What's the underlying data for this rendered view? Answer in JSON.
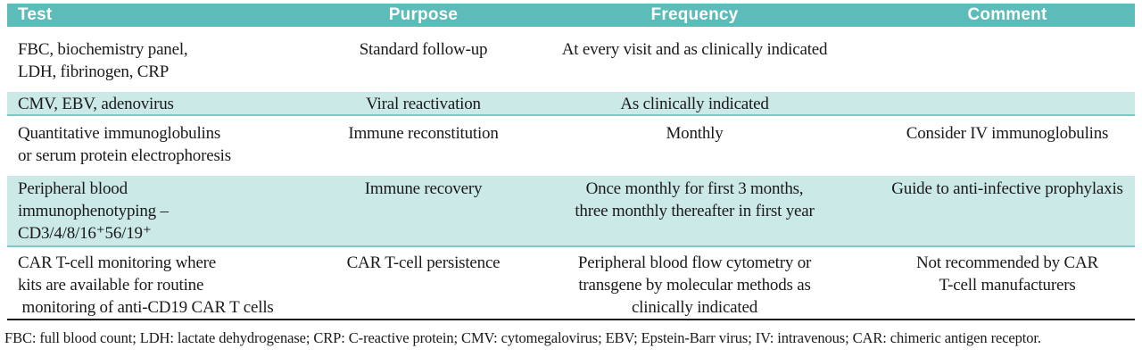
{
  "table": {
    "columns": [
      {
        "label": "Test"
      },
      {
        "label": "Purpose"
      },
      {
        "label": "Frequency"
      },
      {
        "label": "Comment"
      }
    ],
    "rows": [
      {
        "test": "FBC, biochemistry panel,\nLDH, fibrinogen, CRP",
        "purpose": "Standard follow-up",
        "frequency": "At every visit and as clinically indicated",
        "comment": ""
      },
      {
        "test": "CMV, EBV, adenovirus",
        "purpose": "Viral reactivation",
        "frequency": "As clinically indicated",
        "comment": ""
      },
      {
        "test": "Quantitative immunoglobulins\nor serum protein electrophoresis",
        "purpose": "Immune reconstitution",
        "frequency": "Monthly",
        "comment": "Consider IV immunoglobulins"
      },
      {
        "test": "Peripheral blood\nimmunophenotyping –\nCD3/4/8/16⁺56/19⁺",
        "purpose": "Immune recovery",
        "frequency": "Once monthly for first 3 months,\nthree monthly thereafter in first year",
        "comment": "Guide to anti-infective prophylaxis"
      },
      {
        "test": "CAR T-cell monitoring where\nkits are available for routine\n monitoring of anti-CD19 CAR T cells",
        "purpose": "CAR T-cell persistence",
        "frequency": "Peripheral blood flow cytometry or\ntransgene by molecular methods as\nclinically indicated",
        "comment": "Not recommended by CAR\nT-cell manufacturers"
      }
    ],
    "footnote": "FBC: full blood count; LDH: lactate dehydrogenase; CRP: C-reactive protein; CMV: cytomegalovirus; EBV; Epstein-Barr virus; IV: intravenous; CAR: chimeric antigen receptor."
  },
  "colors": {
    "header_bg": "#5bbcb9",
    "header_text": "#ffffff",
    "row_shaded_bg": "#cbe9e7",
    "row_shaded_border": "#7ecac6",
    "text": "#1a1a1a",
    "bottom_rule": "#1a1a1a"
  }
}
